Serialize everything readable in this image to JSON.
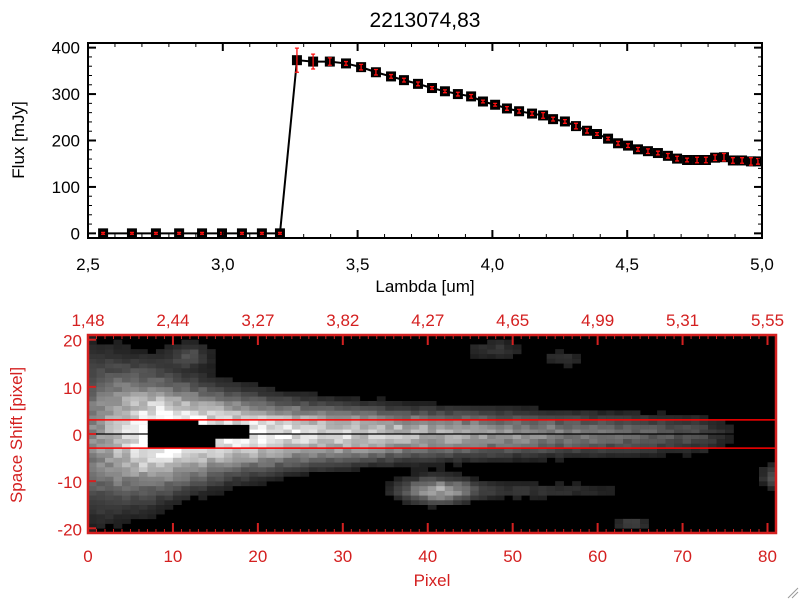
{
  "chart_data": [
    {
      "type": "line",
      "title": "2213074,83",
      "xlabel": "Lambda [um]",
      "ylabel": "Flux [mJy]",
      "xlim": [
        2.5,
        5.0
      ],
      "ylim": [
        -10,
        410
      ],
      "xticks": [
        "2,5",
        "3,0",
        "3,5",
        "4,0",
        "4,5",
        "5,0"
      ],
      "xtick_values": [
        2.5,
        3.0,
        3.5,
        4.0,
        4.5,
        5.0
      ],
      "yticks": [
        "0",
        "100",
        "200",
        "300",
        "400"
      ],
      "ytick_values": [
        0,
        100,
        200,
        300,
        400
      ],
      "series": [
        {
          "name": "flux",
          "x": [
            2.556,
            2.663,
            2.752,
            2.838,
            2.923,
            2.997,
            3.071,
            3.145,
            3.212,
            3.275,
            3.335,
            3.397,
            3.457,
            3.513,
            3.568,
            3.624,
            3.672,
            3.724,
            3.776,
            3.824,
            3.872,
            3.921,
            3.965,
            4.01,
            4.054,
            4.099,
            4.147,
            4.188,
            4.225,
            4.269,
            4.31,
            4.351,
            4.388,
            4.429,
            4.466,
            4.503,
            4.54,
            4.577,
            4.614,
            4.651,
            4.685,
            4.722,
            4.759,
            4.792,
            4.826,
            4.859,
            4.892,
            4.926,
            4.959,
            4.985
          ],
          "y": [
            0,
            0,
            0,
            0,
            0,
            0,
            0,
            0,
            0,
            373,
            370,
            370,
            366,
            358,
            347,
            338,
            330,
            322,
            313,
            306,
            300,
            295,
            284,
            277,
            269,
            263,
            258,
            254,
            246,
            241,
            231,
            221,
            214,
            204,
            194,
            189,
            181,
            177,
            173,
            167,
            161,
            158,
            158,
            158,
            163,
            164,
            157,
            157,
            155,
            155
          ],
          "yerr": [
            2,
            2,
            2,
            2,
            2,
            2,
            2,
            2,
            2,
            26,
            16,
            8,
            4,
            6,
            6,
            4,
            4,
            4,
            3,
            3,
            4,
            4,
            3,
            3,
            4,
            4,
            4,
            6,
            4,
            4,
            6,
            5,
            3,
            3,
            4,
            4,
            4,
            5,
            4,
            5,
            5,
            4,
            6,
            6,
            6,
            8,
            6,
            6,
            8,
            6
          ]
        }
      ]
    },
    {
      "type": "heatmap",
      "xlabel": "Pixel",
      "ylabel": "Space Shift [pixel]",
      "xlim": [
        0,
        81
      ],
      "ylim": [
        -21,
        21
      ],
      "xticks": [
        "0",
        "10",
        "20",
        "30",
        "40",
        "50",
        "60",
        "70",
        "80"
      ],
      "xtick_values": [
        0,
        10,
        20,
        30,
        40,
        50,
        60,
        70,
        80
      ],
      "yticks": [
        "-20",
        "-10",
        "0",
        "10",
        "20"
      ],
      "ytick_values": [
        -20,
        -10,
        0,
        10,
        20
      ],
      "top_xticks": [
        "1,48",
        "2,44",
        "3,27",
        "3,82",
        "4,27",
        "4,65",
        "4,99",
        "5,31",
        "5,55"
      ],
      "extraction_aperture": [
        -3,
        3
      ],
      "center_line": 0,
      "colors": {
        "axis": "#d42020",
        "aperture": "#ff0000"
      }
    }
  ]
}
